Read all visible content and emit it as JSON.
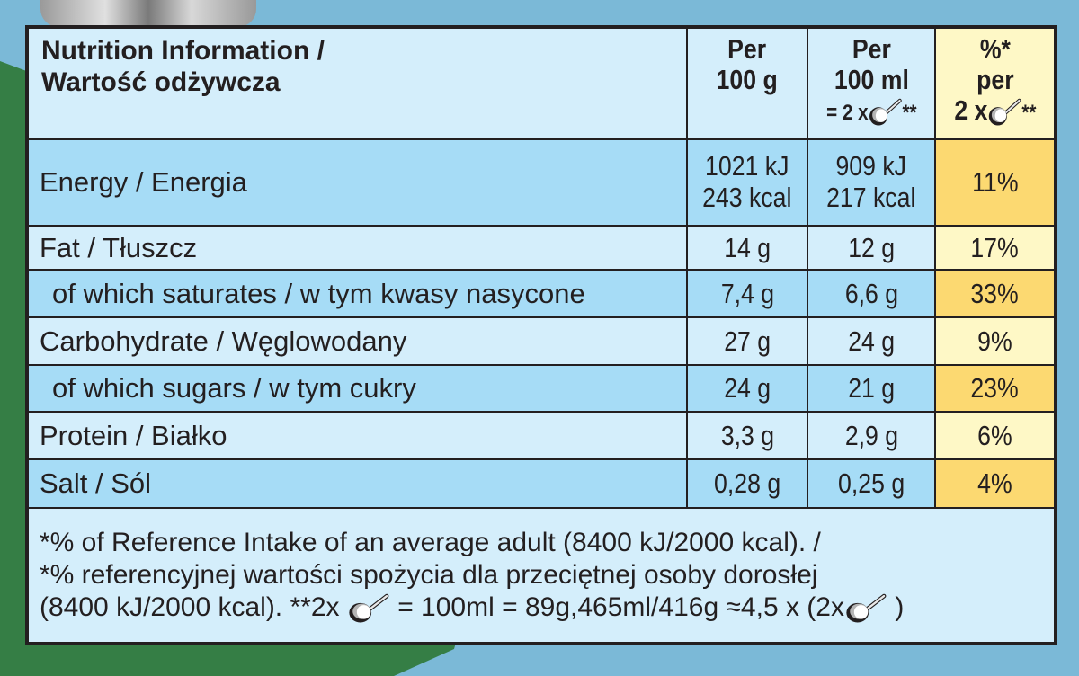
{
  "header": {
    "title_line1": "Nutrition Information /",
    "title_line2": "Wartość odżywcza",
    "col1": [
      "Per",
      "100 g"
    ],
    "col2": [
      "Per",
      "100 ml",
      "= 2 x",
      "**"
    ],
    "col3": [
      "%*",
      "per",
      "2 x",
      "**"
    ],
    "scoop_icon": "ice-cream-scoop-icon"
  },
  "rows": [
    {
      "name": "Energy / Energia",
      "per100g": [
        "1021 kJ",
        "243 kcal"
      ],
      "per100ml": [
        "909 kJ",
        "217 kcal"
      ],
      "ri": "11%"
    },
    {
      "name": "Fat / Tłuszcz",
      "per100g": [
        "14 g"
      ],
      "per100ml": [
        "12 g"
      ],
      "ri": "17%"
    },
    {
      "name": "of which saturates / w tym kwasy nasycone",
      "per100g": [
        "7,4 g"
      ],
      "per100ml": [
        "6,6 g"
      ],
      "ri": "33%"
    },
    {
      "name": "Carbohydrate / Węglowodany",
      "per100g": [
        "27 g"
      ],
      "per100ml": [
        "24 g"
      ],
      "ri": "9%"
    },
    {
      "name": "of which sugars / w tym cukry",
      "per100g": [
        "24 g"
      ],
      "per100ml": [
        "21 g"
      ],
      "ri": "23%"
    },
    {
      "name": "Protein / Białko",
      "per100g": [
        "3,3 g"
      ],
      "per100ml": [
        "2,9 g"
      ],
      "ri": "6%"
    },
    {
      "name": "Salt / Sól",
      "per100g": [
        "0,28 g"
      ],
      "per100ml": [
        "0,25 g"
      ],
      "ri": "4%"
    }
  ],
  "footer": {
    "line1": "*% of Reference Intake of an average adult (8400 kJ/2000 kcal). /",
    "line2": "*% referencyjnej wartości spożycia dla przeciętnej osoby dorosłej",
    "line3a": "(8400 kJ/2000 kcal).  **2x",
    "line3b": "= 100ml = 89g,465ml/416g ≈4,5 x (2x",
    "line3c": ")"
  },
  "colors": {
    "blue_light": "#d4eefb",
    "blue_dark": "#a6dcf6",
    "yellow_light": "#fef8c6",
    "yellow_dark": "#fcd971",
    "background": "#7bb9d7",
    "green": "#357e45"
  }
}
